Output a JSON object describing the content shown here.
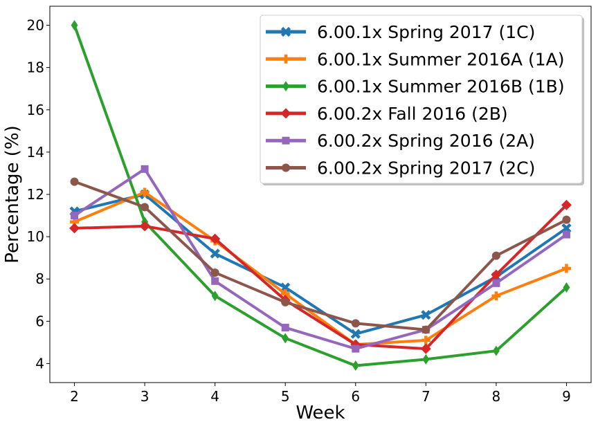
{
  "chart_data": {
    "type": "line",
    "xlabel": "Week",
    "ylabel": "Percentage (%)",
    "x": [
      2,
      3,
      4,
      5,
      6,
      7,
      8,
      9
    ],
    "xlim": [
      1.65,
      9.35
    ],
    "ylim": [
      3.1,
      20.9
    ],
    "xticks": [
      2,
      3,
      4,
      5,
      6,
      7,
      8,
      9
    ],
    "yticks": [
      4,
      6,
      8,
      10,
      12,
      14,
      16,
      18,
      20
    ],
    "grid": false,
    "legend_position": "top-right",
    "series": [
      {
        "name": "6.00.1x Spring 2017 (1C)",
        "color": "#1f77b4",
        "marker": "x",
        "values": [
          11.2,
          12.0,
          9.2,
          7.6,
          5.4,
          6.3,
          8.1,
          10.4
        ]
      },
      {
        "name": "6.00.1x Summer 2016A (1A)",
        "color": "#ff7f0e",
        "marker": "plus",
        "values": [
          10.7,
          12.1,
          9.8,
          7.3,
          4.9,
          5.1,
          7.2,
          8.5
        ]
      },
      {
        "name": "6.00.1x Summer 2016B (1B)",
        "color": "#2ca02c",
        "marker": "thin-diamond",
        "values": [
          20.0,
          10.7,
          7.2,
          5.2,
          3.9,
          4.2,
          4.6,
          7.6
        ]
      },
      {
        "name": "6.00.2x Fall 2016 (2B)",
        "color": "#d62728",
        "marker": "diamond",
        "values": [
          10.4,
          10.5,
          9.9,
          7.0,
          4.9,
          4.7,
          8.2,
          11.5
        ]
      },
      {
        "name": "6.00.2x Spring 2016 (2A)",
        "color": "#9467bd",
        "marker": "square",
        "values": [
          11.0,
          13.2,
          7.9,
          5.7,
          4.7,
          5.6,
          7.8,
          10.1
        ]
      },
      {
        "name": "6.00.2x Spring 2017 (2C)",
        "color": "#8c564b",
        "marker": "circle",
        "values": [
          12.6,
          11.4,
          8.3,
          6.9,
          5.9,
          5.6,
          9.1,
          10.8
        ]
      }
    ]
  }
}
